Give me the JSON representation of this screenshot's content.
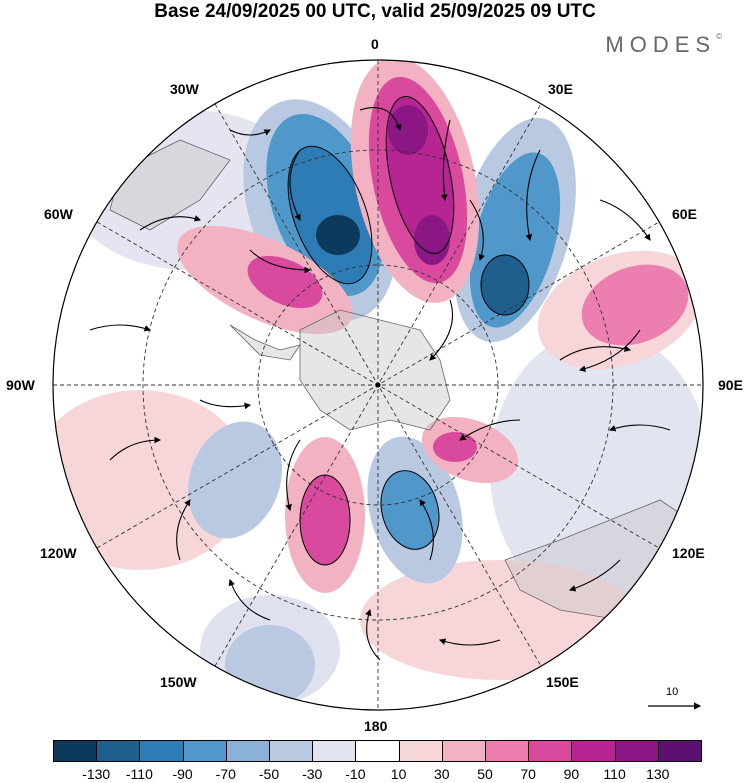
{
  "title": "Base 24/09/2025 00 UTC, valid 25/09/2025 09 UTC",
  "brand": "MODES",
  "brand_mark": "©",
  "lon_labels": {
    "n": "0",
    "ne": "30E",
    "ene": "60E",
    "e": "90E",
    "ese": "120E",
    "se": "150E",
    "s": "180",
    "sw": "150W",
    "wsw": "120W",
    "w": "90W",
    "wnw": "60W",
    "nw": "30W"
  },
  "vector_reference": "10",
  "colorbar": {
    "ticks": [
      "-130",
      "-110",
      "-90",
      "-70",
      "-50",
      "-30",
      "-10",
      "10",
      "30",
      "50",
      "70",
      "90",
      "110",
      "130"
    ],
    "colors": [
      "#0d3a5c",
      "#1f5f8e",
      "#2e7cb5",
      "#5098c9",
      "#89b2d6",
      "#b9c9e2",
      "#e2e4f0",
      "#ffffff",
      "#f7d6da",
      "#f2b2c2",
      "#ec7eb0",
      "#d94a9e",
      "#b72592",
      "#8a1784",
      "#5e1070"
    ]
  }
}
